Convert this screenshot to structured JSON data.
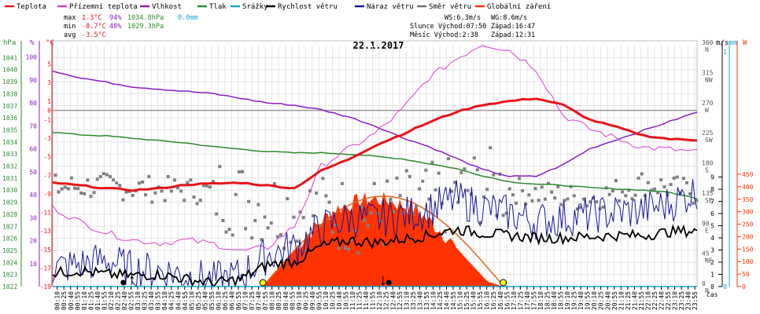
{
  "legend": [
    {
      "label": "Teplota",
      "color": "#e8141b"
    },
    {
      "label": "Přízemní teplota",
      "color": "#e23ad6"
    },
    {
      "label": "Vlhkost",
      "color": "#8a1dc4"
    },
    {
      "label": "Tlak",
      "color": "#2d8b2d"
    },
    {
      "label": "Srážky",
      "color": "#16a8d6"
    },
    {
      "label": "Rychlost větru",
      "color": "#000000"
    },
    {
      "label": "Náraz větru",
      "color": "#17179c"
    },
    {
      "label": "Směr větru",
      "color": "#6e6e6e"
    },
    {
      "label": "Globální záření",
      "color": "#ff3300"
    }
  ],
  "stats": {
    "max_label": "max",
    "max_temp": "1.3°C",
    "max_hum": "94%",
    "max_press": "1034.8hPa",
    "rain": "0.0mm",
    "min_label": "min",
    "min_temp": "-8.7°C",
    "min_hum": "48%",
    "min_press": "1029.3hPa",
    "avg_label": "avg",
    "avg_temp": "-3.5°C",
    "ws": "WS:6.3m/s",
    "wg": "WG:8.6m/s",
    "sun": "Slunce Východ:07:50",
    "sun_set": "Západ:16:47",
    "moon": "Měsíc  Východ:2:38",
    "moon_set": "Západ:12:31"
  },
  "chart_data": {
    "type": "line",
    "title": "22.1.2017",
    "xlabel": "čas",
    "x_ticks": [
      "00:10",
      "00:25",
      "00:40",
      "00:55",
      "01:10",
      "01:25",
      "01:40",
      "01:55",
      "02:10",
      "02:25",
      "02:40",
      "02:55",
      "03:10",
      "03:25",
      "03:40",
      "03:55",
      "04:10",
      "04:25",
      "04:40",
      "04:55",
      "05:10",
      "05:25",
      "05:40",
      "05:55",
      "06:10",
      "06:25",
      "06:40",
      "06:55",
      "07:10",
      "07:25",
      "07:40",
      "07:55",
      "08:10",
      "08:25",
      "08:40",
      "08:55",
      "09:10",
      "09:25",
      "09:40",
      "09:55",
      "10:10",
      "10:25",
      "10:40",
      "10:55",
      "11:10",
      "11:25",
      "11:40",
      "11:55",
      "12:10",
      "12:25",
      "12:40",
      "12:55",
      "13:10",
      "13:25",
      "13:40",
      "13:55",
      "14:10",
      "14:25",
      "14:40",
      "14:55",
      "15:10",
      "15:25",
      "15:40",
      "15:55",
      "16:10",
      "16:25",
      "16:40",
      "16:55",
      "17:10",
      "17:25",
      "17:40",
      "17:55",
      "18:10",
      "18:25",
      "18:40",
      "18:55",
      "19:10",
      "19:25",
      "19:40",
      "19:55",
      "20:10",
      "20:25",
      "20:40",
      "20:55",
      "21:10",
      "21:25",
      "21:40",
      "21:55",
      "22:10",
      "22:25",
      "22:40",
      "22:55",
      "23:10",
      "23:25",
      "23:40",
      "23:55"
    ],
    "axes": {
      "pressure": {
        "label": "hPa",
        "ylim": [
          1022,
          1042
        ],
        "ticks": [
          "1022",
          "1023",
          "1024",
          "1025",
          "1026",
          "1027",
          "1028",
          "1029",
          "1030",
          "1031",
          "1032",
          "1033",
          "1034",
          "1035",
          "1036",
          "1037",
          "1038",
          "1039",
          "1040",
          "1041"
        ]
      },
      "humidity": {
        "label": "%",
        "ylim": [
          0,
          105
        ],
        "ticks": [
          "10",
          "20",
          "30",
          "40",
          "50",
          "60",
          "70",
          "80",
          "90",
          "100"
        ]
      },
      "temperature": {
        "label": "°C",
        "ylim": [
          -19,
          7
        ],
        "ticks": [
          "-19",
          "-17",
          "-15",
          "-13",
          "-11",
          "-9",
          "-7",
          "-5",
          "-3",
          "-1",
          "0",
          "1",
          "3",
          "5"
        ]
      },
      "wind_dir": {
        "label": "",
        "ticks": [
          {
            "deg": "0",
            "dir": "N"
          },
          {
            "deg": "45",
            "dir": "NE"
          },
          {
            "deg": "90",
            "dir": "E"
          },
          {
            "deg": "135",
            "dir": "SE"
          },
          {
            "deg": "180",
            "dir": "S"
          },
          {
            "deg": "225",
            "dir": "SW"
          },
          {
            "deg": "270",
            "dir": "W"
          },
          {
            "deg": "315",
            "dir": "NW"
          },
          {
            "deg": "360",
            "dir": "N"
          }
        ]
      },
      "wind_speed": {
        "label": "m/s",
        "ticks": [
          "0",
          "1",
          "2",
          "3",
          "4",
          "5",
          "6",
          "7",
          "8",
          "9"
        ]
      },
      "rain": {
        "label": "mm",
        "ticks": [
          "0",
          "1"
        ]
      },
      "radiation": {
        "label": "W",
        "ticks": [
          "0",
          "50",
          "100",
          "150",
          "200",
          "250",
          "300",
          "350",
          "400",
          "450"
        ]
      }
    },
    "series": [
      {
        "name": "Teplota",
        "unit": "°C",
        "x": [
          0,
          1,
          2,
          3,
          4,
          5,
          6,
          7,
          8,
          9,
          10,
          11,
          12,
          13,
          14,
          15,
          16,
          17,
          18,
          19,
          20,
          21,
          22,
          23,
          24
        ],
        "values": [
          -7.8,
          -8.1,
          -8.4,
          -8.6,
          -8.4,
          -8.0,
          -7.9,
          -7.8,
          -8.1,
          -8.4,
          -6.5,
          -5.3,
          -3.8,
          -2.6,
          -1.3,
          -0.2,
          0.6,
          1.0,
          1.3,
          0.6,
          -1.0,
          -1.8,
          -2.7,
          -3.1,
          -3.2
        ]
      },
      {
        "name": "Přízemní teplota",
        "unit": "°C",
        "x": [
          0,
          1,
          2,
          3,
          4,
          5,
          6,
          7,
          8,
          9,
          10,
          11,
          12,
          13,
          14,
          15,
          16,
          17,
          18,
          19,
          20,
          21,
          22,
          23,
          24
        ],
        "values": [
          -10.5,
          -12.0,
          -13.2,
          -14.0,
          -14.3,
          -14.0,
          -14.4,
          -15.2,
          -14.8,
          -12.5,
          -6.0,
          -4.2,
          -2.5,
          0.0,
          3.5,
          5.5,
          7.2,
          6.5,
          4.5,
          -0.5,
          -2.0,
          -3.0,
          -4.0,
          -4.2,
          -4.5
        ]
      },
      {
        "name": "Vlhkost",
        "unit": "%",
        "x": [
          0,
          1,
          2,
          3,
          4,
          5,
          6,
          7,
          8,
          9,
          10,
          11,
          12,
          13,
          14,
          15,
          16,
          17,
          18,
          19,
          20,
          21,
          22,
          23,
          24
        ],
        "values": [
          94,
          91,
          89,
          87,
          86,
          85,
          84,
          82,
          80,
          79,
          77,
          74,
          70,
          65,
          61,
          56,
          51,
          48,
          48,
          53,
          60,
          64,
          68,
          72,
          76
        ]
      },
      {
        "name": "Tlak",
        "unit": "hPa",
        "x": [
          0,
          1,
          2,
          3,
          4,
          5,
          6,
          7,
          8,
          9,
          10,
          11,
          12,
          13,
          14,
          15,
          16,
          17,
          18,
          19,
          20,
          21,
          22,
          23,
          24
        ],
        "values": [
          1034.8,
          1034.6,
          1034.5,
          1034.3,
          1034.1,
          1033.9,
          1033.6,
          1033.4,
          1033.2,
          1033.1,
          1033.1,
          1033.0,
          1032.8,
          1032.6,
          1032.2,
          1031.8,
          1031.2,
          1030.7,
          1030.5,
          1030.4,
          1030.2,
          1030.1,
          1030.0,
          1029.8,
          1029.3
        ]
      },
      {
        "name": "Srážky",
        "unit": "mm",
        "x": [
          0,
          24
        ],
        "values": [
          0.0,
          0.0
        ]
      },
      {
        "name": "Rychlost větru",
        "unit": "m/s",
        "x": [
          0,
          1,
          2,
          3,
          4,
          5,
          6,
          7,
          8,
          9,
          10,
          11,
          12,
          13,
          14,
          15,
          16,
          17,
          18,
          19,
          20,
          21,
          22,
          23,
          24
        ],
        "values": [
          1.1,
          1.3,
          1.0,
          0.9,
          1.0,
          0.6,
          0.3,
          0.6,
          1.8,
          2.0,
          3.3,
          3.8,
          3.6,
          3.9,
          4.2,
          4.7,
          4.4,
          4.2,
          4.0,
          4.0,
          4.1,
          4.2,
          4.2,
          4.5,
          4.6
        ]
      },
      {
        "name": "Náraz větru",
        "unit": "m/s",
        "x": [
          0,
          1,
          2,
          3,
          4,
          5,
          6,
          7,
          8,
          9,
          10,
          11,
          12,
          13,
          14,
          15,
          16,
          17,
          18,
          19,
          20,
          21,
          22,
          23,
          24
        ],
        "values": [
          1.5,
          1.8,
          2.2,
          1.4,
          1.3,
          0.9,
          0.5,
          0.9,
          2.6,
          3.2,
          4.8,
          5.6,
          5.5,
          5.8,
          6.3,
          7.2,
          6.5,
          6.0,
          5.4,
          5.6,
          5.9,
          6.1,
          6.3,
          6.8,
          7.9
        ]
      },
      {
        "name": "Směr větru",
        "unit": "°",
        "x": [
          0,
          2,
          4,
          6,
          8,
          10,
          12,
          14,
          16,
          18,
          20,
          22,
          24
        ],
        "values": [
          148,
          150,
          145,
          142,
          120,
          110,
          105,
          125,
          150,
          140,
          130,
          155,
          140
        ]
      },
      {
        "name": "Globální záření",
        "unit": "W",
        "x": [
          7.83,
          8.5,
          9.5,
          10.5,
          11.5,
          12.0,
          12.5,
          13.5,
          14.5,
          15.5,
          16.2,
          16.78
        ],
        "values": [
          0,
          80,
          210,
          310,
          345,
          350,
          345,
          310,
          220,
          100,
          20,
          0
        ]
      }
    ],
    "grid": true,
    "legend_position": "top"
  }
}
